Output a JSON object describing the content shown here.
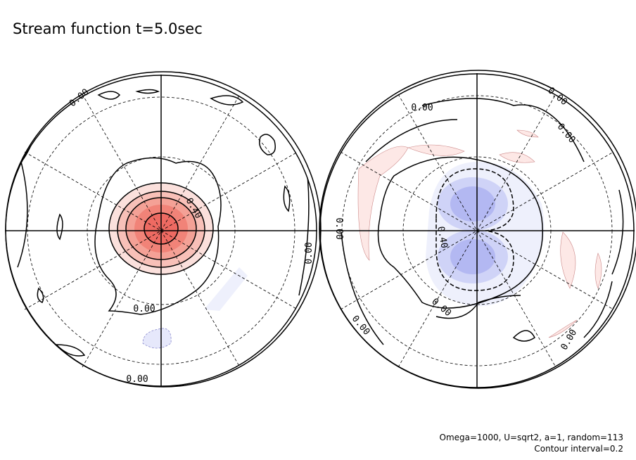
{
  "title": "Stream function t=5.0sec",
  "footer": [
    "Omega=1000, U=sqrt2, a=1, random=113",
    "Contour interval=0.2"
  ],
  "panels": [
    {
      "contour_labels": [
        "0.00",
        "0.40",
        "0.00",
        "0.00",
        "0.00"
      ]
    },
    {
      "contour_labels": [
        "0.00",
        "0.00",
        "0.00",
        "0.00",
        "0.40",
        "0.00",
        "0.00",
        "0.00"
      ]
    }
  ]
}
